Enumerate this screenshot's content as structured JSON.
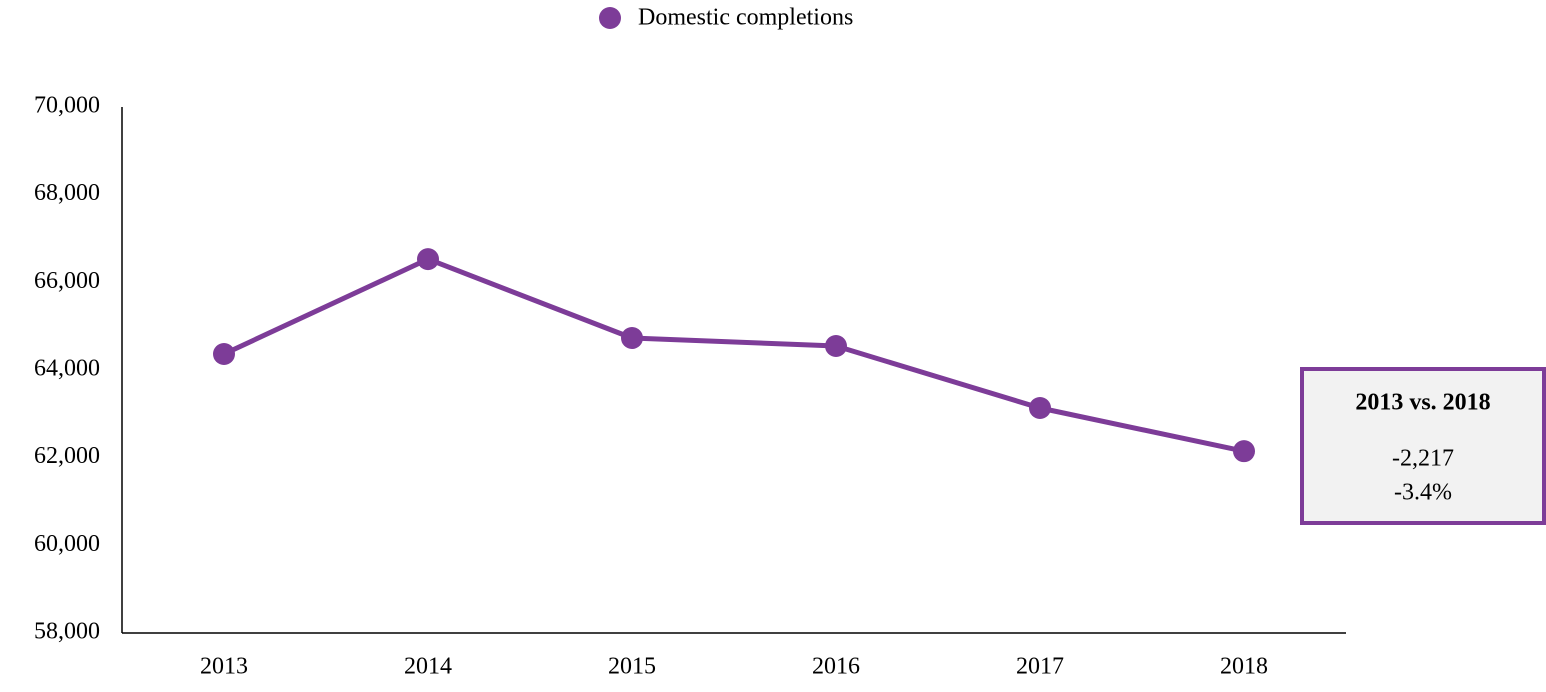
{
  "chart_data": {
    "type": "line",
    "categories": [
      "2013",
      "2014",
      "2015",
      "2016",
      "2017",
      "2018"
    ],
    "series": [
      {
        "name": "Domestic completions",
        "color": "#7d3c98",
        "values": [
          64365,
          66530,
          64730,
          64547,
          63133,
          62148
        ]
      }
    ],
    "ylim": [
      58000,
      70000
    ],
    "yticks": [
      {
        "value": 58000,
        "label": "58,000"
      },
      {
        "value": 60000,
        "label": "60,000"
      },
      {
        "value": 62000,
        "label": "62,000"
      },
      {
        "value": 64000,
        "label": "64,000"
      },
      {
        "value": 66000,
        "label": "66,000"
      },
      {
        "value": 68000,
        "label": "68,000"
      },
      {
        "value": 70000,
        "label": "70,000"
      }
    ],
    "grid": false,
    "legend": "top",
    "annotation": {
      "title": "2013 vs. 2018",
      "lines": [
        "-2,217",
        "-3.4%"
      ]
    }
  }
}
